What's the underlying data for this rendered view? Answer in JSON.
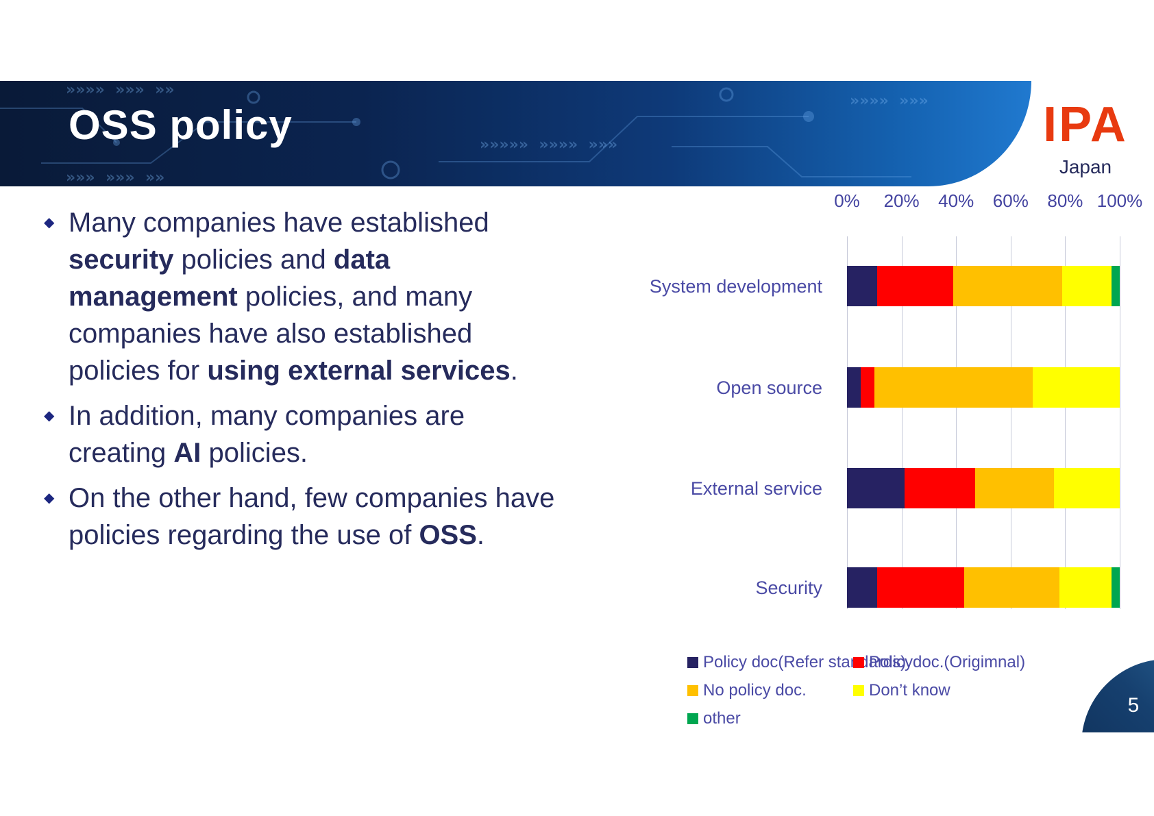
{
  "slide": {
    "title": "OSS policy",
    "page_number": "5",
    "logo": {
      "text": "IPA",
      "subtext": "Japan"
    },
    "bullets": [
      {
        "segments": [
          {
            "t": "Many companies have established ",
            "b": false
          },
          {
            "t": "security",
            "b": true
          },
          {
            "t": " policies and ",
            "b": false
          },
          {
            "t": "data management",
            "b": true
          },
          {
            "t": " policies, and many companies have also established policies for ",
            "b": false
          },
          {
            "t": "using external services",
            "b": true
          },
          {
            "t": ".",
            "b": false
          }
        ]
      },
      {
        "segments": [
          {
            "t": "In addition, many companies are creating ",
            "b": false
          },
          {
            "t": "AI",
            "b": true
          },
          {
            "t": " policies.",
            "b": false
          }
        ]
      },
      {
        "segments": [
          {
            "t": "On the other hand, few companies have policies regarding the use of ",
            "b": false
          },
          {
            "t": "OSS",
            "b": true
          },
          {
            "t": ".",
            "b": false
          }
        ]
      }
    ]
  },
  "chart_data": {
    "type": "bar",
    "orientation": "horizontal",
    "stacked": true,
    "units": "percent",
    "categories": [
      "System development",
      "Open source",
      "External service",
      "Security"
    ],
    "series": [
      {
        "name": "Policy doc(Refer standards)",
        "color": "#262262",
        "values": [
          11,
          5,
          21,
          11
        ]
      },
      {
        "name": "Policydoc.(Origimnal)",
        "color": "#ff0000",
        "values": [
          28,
          5,
          26,
          32
        ]
      },
      {
        "name": "No policy doc.",
        "color": "#ffc000",
        "values": [
          40,
          58,
          29,
          35
        ]
      },
      {
        "name": "Don’t know",
        "color": "#ffff00",
        "values": [
          18,
          32,
          24,
          19
        ]
      },
      {
        "name": "other",
        "color": "#00a650",
        "values": [
          3,
          0,
          0,
          3
        ]
      }
    ],
    "x_ticks": [
      "0%",
      "20%",
      "40%",
      "60%",
      "80%",
      "100%"
    ],
    "xlim": [
      0,
      100
    ],
    "grid": true,
    "legend_position": "bottom"
  }
}
